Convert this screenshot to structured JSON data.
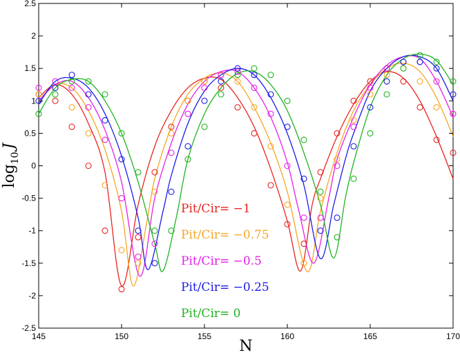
{
  "chart_data": {
    "type": "line",
    "xlabel": "N",
    "ylabel": "log",
    "ylabel_sub": "10",
    "ylabel_var": "J",
    "xlim": [
      145,
      170
    ],
    "ylim": [
      -2.5,
      2.5
    ],
    "x_ticks": [
      145,
      150,
      155,
      160,
      165,
      170
    ],
    "x_tick_labels": [
      "145",
      "150",
      "155",
      "160",
      "165",
      "170"
    ],
    "y_ticks": [
      -2.5,
      -2,
      -1.5,
      -1,
      -0.5,
      0,
      0.5,
      1,
      1.5,
      2,
      2.5
    ],
    "y_tick_labels": [
      "-2.5",
      "-2",
      "-1.5",
      "-1",
      "-0.5",
      "0",
      "0.5",
      "1",
      "1.5",
      "2",
      "2.5"
    ],
    "grid": false,
    "legend_placement": "center-left",
    "series": [
      {
        "name": "Pit/Cir= −1",
        "color": "#e8231f",
        "curve": [
          [
            145,
            1.05
          ],
          [
            146,
            1.25
          ],
          [
            147,
            1.1
          ],
          [
            148,
            0.65
          ],
          [
            149,
            -0.1
          ],
          [
            150,
            -1.85
          ],
          [
            151,
            -0.6
          ],
          [
            152,
            0.3
          ],
          [
            153,
            0.85
          ],
          [
            154,
            1.2
          ],
          [
            155,
            1.35
          ],
          [
            156,
            1.33
          ],
          [
            157,
            1.05
          ],
          [
            158,
            0.6
          ],
          [
            159,
            -0.05
          ],
          [
            160,
            -0.85
          ],
          [
            160.8,
            -1.62
          ],
          [
            161.5,
            -0.6
          ],
          [
            162,
            -0.2
          ],
          [
            163,
            0.45
          ],
          [
            164,
            0.95
          ],
          [
            165,
            1.3
          ],
          [
            166,
            1.45
          ],
          [
            167,
            1.35
          ],
          [
            168,
            1.0
          ],
          [
            169,
            0.45
          ],
          [
            170,
            -0.2
          ]
        ],
        "points": [
          [
            145,
            1.1
          ],
          [
            146,
            1.0
          ],
          [
            147,
            0.6
          ],
          [
            148,
            0.0
          ],
          [
            149,
            -1.0
          ],
          [
            150,
            -1.9
          ],
          [
            151,
            -1.1
          ],
          [
            152,
            -0.1
          ],
          [
            153,
            0.6
          ],
          [
            154,
            1.0
          ],
          [
            155,
            1.3
          ],
          [
            156,
            1.2
          ],
          [
            157,
            0.9
          ],
          [
            158,
            0.5
          ],
          [
            159,
            -0.3
          ],
          [
            160,
            -0.9
          ],
          [
            161,
            -1.2
          ],
          [
            162,
            -0.1
          ],
          [
            163,
            0.5
          ],
          [
            164,
            1.0
          ],
          [
            165,
            1.3
          ],
          [
            166,
            1.5
          ],
          [
            167,
            1.3
          ],
          [
            168,
            0.9
          ],
          [
            169,
            0.4
          ],
          [
            170,
            0.2
          ]
        ]
      },
      {
        "name": "Pit/Cir= −0.75",
        "color": "#f5a623",
        "curve": [
          [
            145,
            1.0
          ],
          [
            146,
            1.25
          ],
          [
            147,
            1.2
          ],
          [
            148,
            0.85
          ],
          [
            149,
            0.25
          ],
          [
            150,
            -0.7
          ],
          [
            150.7,
            -1.85
          ],
          [
            151.5,
            -0.9
          ],
          [
            152,
            -0.2
          ],
          [
            153,
            0.6
          ],
          [
            154,
            1.1
          ],
          [
            155,
            1.35
          ],
          [
            156,
            1.43
          ],
          [
            157,
            1.3
          ],
          [
            158,
            0.9
          ],
          [
            159,
            0.35
          ],
          [
            160,
            -0.4
          ],
          [
            161.2,
            -1.63
          ],
          [
            162,
            -0.7
          ],
          [
            163,
            0.2
          ],
          [
            164,
            0.85
          ],
          [
            165,
            1.25
          ],
          [
            166,
            1.5
          ],
          [
            167,
            1.58
          ],
          [
            168,
            1.45
          ],
          [
            169,
            1.05
          ],
          [
            170,
            0.45
          ]
        ],
        "points": [
          [
            145,
            1.1
          ],
          [
            146,
            1.2
          ],
          [
            147,
            0.9
          ],
          [
            148,
            0.5
          ],
          [
            149,
            -0.3
          ],
          [
            150,
            -1.3
          ],
          [
            151,
            -1.5
          ],
          [
            152,
            -0.4
          ],
          [
            153,
            0.5
          ],
          [
            154,
            1.0
          ],
          [
            155,
            1.3
          ],
          [
            156,
            1.4
          ],
          [
            157,
            1.3
          ],
          [
            158,
            0.9
          ],
          [
            159,
            0.3
          ],
          [
            160,
            -0.6
          ],
          [
            161,
            -1.5
          ],
          [
            162,
            -0.5
          ],
          [
            163,
            0.1
          ],
          [
            164,
            0.7
          ],
          [
            165,
            1.1
          ],
          [
            166,
            1.4
          ],
          [
            167,
            1.5
          ],
          [
            168,
            1.3
          ],
          [
            169,
            0.9
          ],
          [
            170,
            0.8
          ]
        ]
      },
      {
        "name": "Pit/Cir= −0.5",
        "color": "#e81ee8",
        "curve": [
          [
            145,
            1.0
          ],
          [
            146,
            1.25
          ],
          [
            147,
            1.3
          ],
          [
            148,
            1.05
          ],
          [
            149,
            0.55
          ],
          [
            150,
            -0.25
          ],
          [
            151.1,
            -1.7
          ],
          [
            152,
            -0.5
          ],
          [
            153,
            0.35
          ],
          [
            154,
            0.95
          ],
          [
            155,
            1.3
          ],
          [
            156,
            1.45
          ],
          [
            157,
            1.45
          ],
          [
            158,
            1.2
          ],
          [
            159,
            0.75
          ],
          [
            160,
            0.05
          ],
          [
            160.7,
            -0.7
          ],
          [
            161.6,
            -1.5
          ],
          [
            162.5,
            -0.5
          ],
          [
            163,
            0.1
          ],
          [
            164,
            0.75
          ],
          [
            165,
            1.25
          ],
          [
            166,
            1.55
          ],
          [
            167,
            1.68
          ],
          [
            168,
            1.65
          ],
          [
            169,
            1.3
          ],
          [
            170,
            0.75
          ]
        ],
        "points": [
          [
            145,
            1.2
          ],
          [
            146,
            1.3
          ],
          [
            147,
            1.2
          ],
          [
            148,
            0.9
          ],
          [
            149,
            0.4
          ],
          [
            150,
            -0.5
          ],
          [
            151,
            -1.4
          ],
          [
            152,
            -1.2
          ],
          [
            153,
            0.2
          ],
          [
            154,
            0.8
          ],
          [
            155,
            1.2
          ],
          [
            156,
            1.4
          ],
          [
            157,
            1.45
          ],
          [
            158,
            1.2
          ],
          [
            159,
            0.8
          ],
          [
            160,
            0.0
          ],
          [
            161,
            -0.8
          ],
          [
            162,
            -0.8
          ],
          [
            163,
            0.0
          ],
          [
            164,
            0.6
          ],
          [
            165,
            1.2
          ],
          [
            166,
            1.5
          ],
          [
            167,
            1.6
          ],
          [
            168,
            1.6
          ],
          [
            169,
            1.3
          ],
          [
            170,
            0.8
          ]
        ]
      },
      {
        "name": "Pit/Cir= −0.25",
        "color": "#1a1ae8",
        "curve": [
          [
            145,
            0.95
          ],
          [
            146,
            1.3
          ],
          [
            147,
            1.35
          ],
          [
            148,
            1.2
          ],
          [
            149,
            0.8
          ],
          [
            150,
            0.15
          ],
          [
            151,
            -0.8
          ],
          [
            151.6,
            -1.6
          ],
          [
            152.5,
            -0.7
          ],
          [
            153,
            -0.15
          ],
          [
            154,
            0.65
          ],
          [
            155,
            1.15
          ],
          [
            156,
            1.4
          ],
          [
            157,
            1.5
          ],
          [
            158,
            1.4
          ],
          [
            159,
            1.05
          ],
          [
            160,
            0.5
          ],
          [
            161,
            -0.3
          ],
          [
            162,
            -1.43
          ],
          [
            162.8,
            -0.6
          ],
          [
            163.5,
            0.1
          ],
          [
            164,
            0.5
          ],
          [
            165,
            1.15
          ],
          [
            166,
            1.5
          ],
          [
            167,
            1.68
          ],
          [
            168,
            1.68
          ],
          [
            169,
            1.5
          ],
          [
            170,
            1.0
          ]
        ],
        "points": [
          [
            145,
            1.0
          ],
          [
            146,
            1.2
          ],
          [
            147,
            1.4
          ],
          [
            148,
            1.1
          ],
          [
            149,
            0.7
          ],
          [
            150,
            0.1
          ],
          [
            151,
            -1.0
          ],
          [
            152,
            -1.5
          ],
          [
            153,
            -0.4
          ],
          [
            154,
            0.3
          ],
          [
            155,
            1.0
          ],
          [
            156,
            1.3
          ],
          [
            157,
            1.5
          ],
          [
            158,
            1.4
          ],
          [
            159,
            1.1
          ],
          [
            160,
            0.6
          ],
          [
            161,
            -0.2
          ],
          [
            162,
            -1.0
          ],
          [
            163,
            -0.8
          ],
          [
            164,
            0.3
          ],
          [
            165,
            0.9
          ],
          [
            166,
            1.3
          ],
          [
            167,
            1.6
          ],
          [
            168,
            1.6
          ],
          [
            169,
            1.5
          ],
          [
            170,
            1.1
          ]
        ]
      },
      {
        "name": "Pit/Cir= 0",
        "color": "#1fb21f",
        "curve": [
          [
            145,
            0.8
          ],
          [
            146,
            1.2
          ],
          [
            147,
            1.33
          ],
          [
            148,
            1.3
          ],
          [
            149,
            1.0
          ],
          [
            150,
            0.5
          ],
          [
            151,
            -0.25
          ],
          [
            152,
            -1.2
          ],
          [
            152.5,
            -1.62
          ],
          [
            153.3,
            -0.8
          ],
          [
            154,
            0.1
          ],
          [
            155,
            0.8
          ],
          [
            156,
            1.2
          ],
          [
            157,
            1.42
          ],
          [
            158,
            1.45
          ],
          [
            159,
            1.25
          ],
          [
            160,
            0.85
          ],
          [
            161,
            0.2
          ],
          [
            162,
            -0.6
          ],
          [
            162.8,
            -1.42
          ],
          [
            163.5,
            -0.5
          ],
          [
            164,
            0.05
          ],
          [
            165,
            0.9
          ],
          [
            166,
            1.4
          ],
          [
            167,
            1.65
          ],
          [
            168,
            1.72
          ],
          [
            169,
            1.62
          ],
          [
            170,
            1.25
          ]
        ],
        "points": [
          [
            145,
            0.8
          ],
          [
            146,
            1.1
          ],
          [
            147,
            1.3
          ],
          [
            148,
            1.3
          ],
          [
            149,
            1.1
          ],
          [
            150,
            0.5
          ],
          [
            151,
            -0.1
          ],
          [
            152,
            -1.0
          ],
          [
            153,
            -1.0
          ],
          [
            154,
            0.1
          ],
          [
            155,
            0.6
          ],
          [
            156,
            1.1
          ],
          [
            157,
            1.4
          ],
          [
            158,
            1.5
          ],
          [
            159,
            1.4
          ],
          [
            160,
            1.0
          ],
          [
            161,
            0.4
          ],
          [
            162,
            -0.4
          ],
          [
            163,
            -1.1
          ],
          [
            164,
            -0.2
          ],
          [
            165,
            0.5
          ],
          [
            166,
            1.1
          ],
          [
            167,
            1.5
          ],
          [
            168,
            1.7
          ],
          [
            169,
            1.6
          ],
          [
            170,
            1.3
          ]
        ]
      }
    ]
  }
}
